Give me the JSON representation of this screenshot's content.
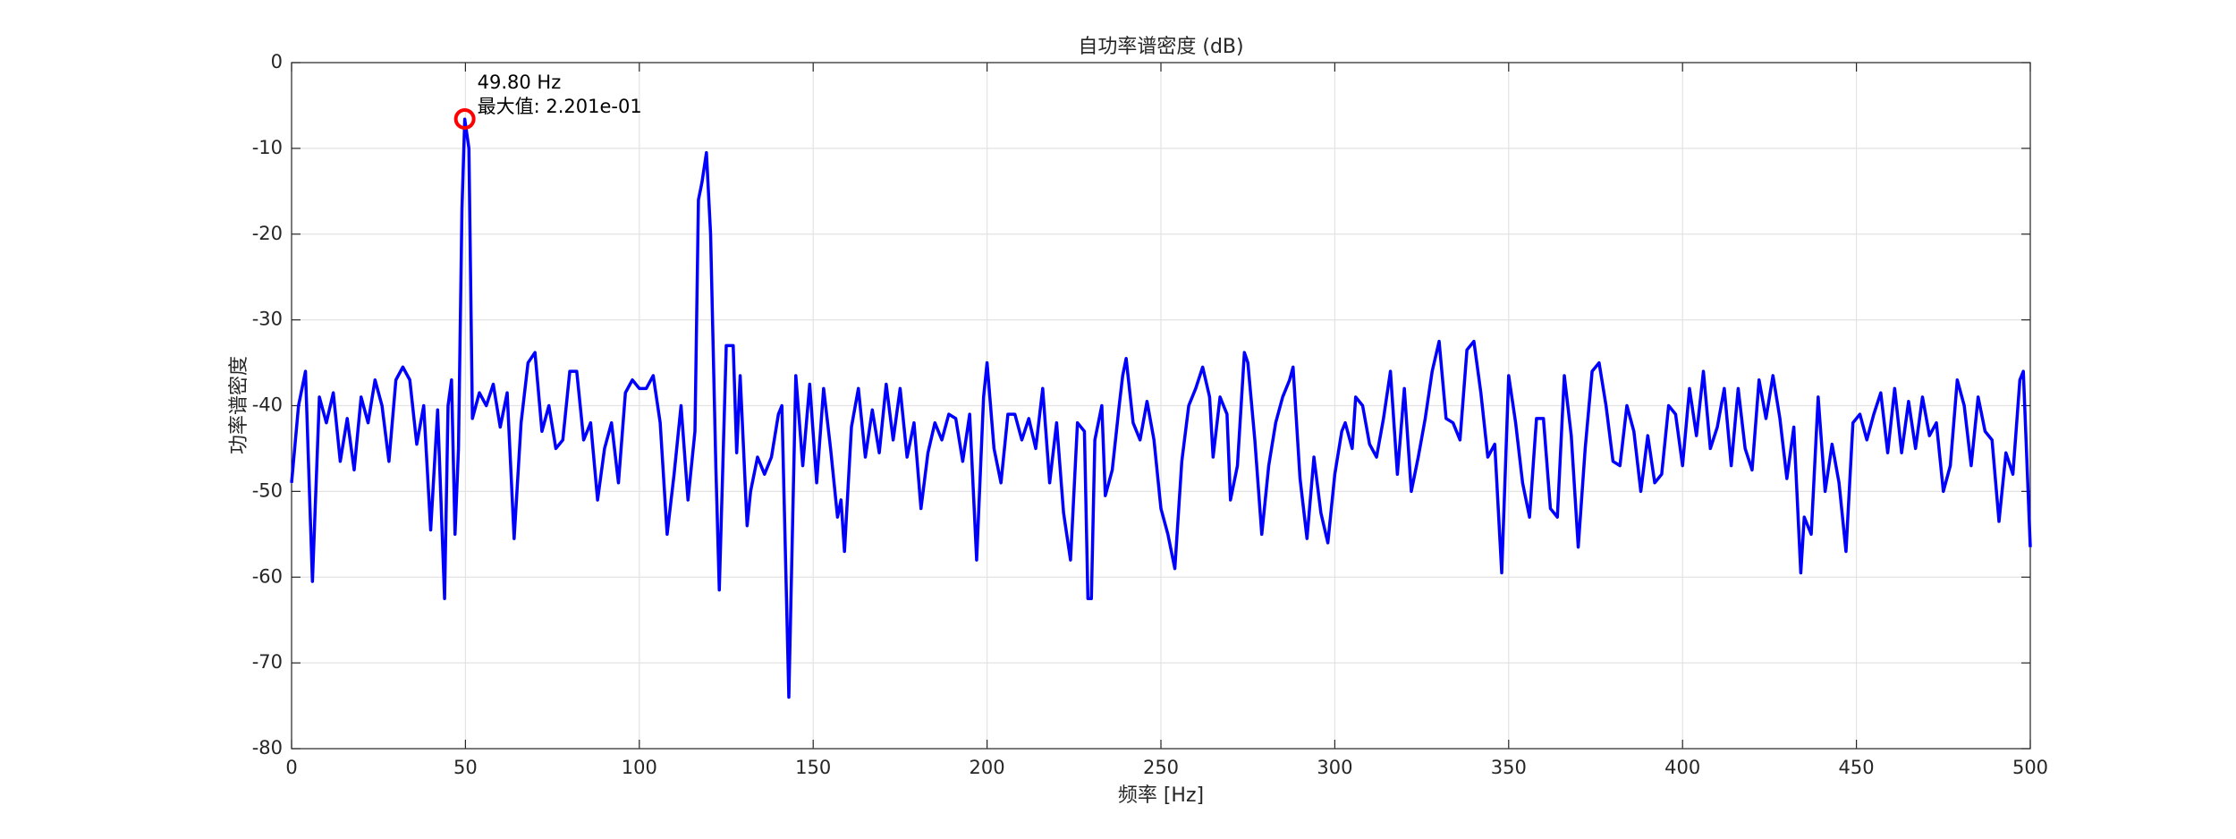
{
  "chart_data": {
    "type": "line",
    "title": "自功率谱密度 (dB)",
    "xlabel": "频率 [Hz]",
    "ylabel": "功率谱密度",
    "xlim": [
      0,
      500
    ],
    "xticks": [
      0,
      50,
      100,
      150,
      200,
      250,
      300,
      350,
      400,
      450,
      500
    ],
    "ylim": [
      -80,
      0
    ],
    "yticks": [
      -80,
      -70,
      -60,
      -50,
      -40,
      -30,
      -20,
      -10,
      0
    ],
    "grid": true,
    "color": "#0000ff",
    "x": [
      0,
      2,
      4,
      6,
      8,
      10,
      12,
      14,
      16,
      18,
      20,
      22,
      24,
      26,
      28,
      30,
      32,
      34,
      36,
      38,
      40,
      42,
      44,
      45,
      46,
      47,
      48,
      49,
      49.8,
      51,
      52,
      54,
      56,
      58,
      60,
      62,
      64,
      66,
      68,
      70,
      72,
      74,
      76,
      78,
      80,
      82,
      84,
      86,
      88,
      90,
      92,
      94,
      96,
      98,
      100,
      102,
      104,
      106,
      108,
      110,
      112,
      114,
      116,
      117,
      118,
      119.3,
      120.5,
      122,
      123,
      125,
      127,
      128,
      129,
      131,
      132,
      134,
      136,
      138,
      140,
      141,
      143,
      145,
      147,
      149,
      151,
      153,
      155,
      157,
      158,
      159,
      161,
      163,
      165,
      167,
      169,
      171,
      173,
      175,
      177,
      179,
      181,
      183,
      185,
      187,
      189,
      191,
      193,
      195,
      197,
      199,
      200,
      202,
      204,
      206,
      208,
      210,
      212,
      214,
      216,
      218,
      220,
      222,
      224,
      226,
      228,
      229,
      230,
      231,
      233,
      234,
      236,
      238,
      239,
      240,
      242,
      244,
      246,
      248,
      250,
      252,
      254,
      256,
      258,
      260,
      262,
      264,
      265,
      267,
      269,
      270,
      272,
      274,
      275,
      277,
      279,
      281,
      283,
      285,
      287,
      288,
      290,
      292,
      294,
      296,
      298,
      300,
      302,
      303,
      305,
      306,
      308,
      310,
      312,
      314,
      316,
      318,
      320,
      322,
      324,
      326,
      328,
      330,
      332,
      334,
      336,
      338,
      340,
      342,
      344,
      346,
      348,
      350,
      352,
      354,
      356,
      358,
      360,
      362,
      364,
      366,
      368,
      370,
      372,
      374,
      376,
      378,
      380,
      382,
      384,
      386,
      388,
      390,
      392,
      394,
      396,
      398,
      400,
      402,
      404,
      406,
      408,
      410,
      412,
      414,
      416,
      418,
      420,
      422,
      424,
      426,
      428,
      430,
      432,
      434,
      435,
      437,
      439,
      441,
      443,
      445,
      447,
      449,
      451,
      453,
      455,
      457,
      459,
      461,
      463,
      465,
      467,
      469,
      471,
      473,
      475,
      477,
      479,
      481,
      483,
      485,
      487,
      489,
      491,
      493,
      495,
      497,
      498,
      500
    ],
    "values": [
      -49,
      -40,
      -36,
      -60.5,
      -39,
      -42,
      -38.5,
      -46.5,
      -41.5,
      -47.5,
      -39,
      -42,
      -37,
      -40,
      -46.5,
      -37,
      -35.5,
      -37,
      -44.5,
      -40,
      -54.5,
      -40.5,
      -62.5,
      -40,
      -37,
      -55,
      -45,
      -17,
      -6.6,
      -10,
      -41.5,
      -38.5,
      -40,
      -37.5,
      -42.5,
      -38.5,
      -55.5,
      -42,
      -35,
      -33.8,
      -43,
      -40,
      -45,
      -44,
      -36,
      -36,
      -44,
      -42,
      -51,
      -45,
      -42,
      -49,
      -38.5,
      -37,
      -38,
      -38,
      -36.5,
      -42,
      -55,
      -48,
      -40,
      -51,
      -43,
      -16,
      -14,
      -10.5,
      -20,
      -47,
      -61.5,
      -33,
      -33,
      -45.5,
      -36.5,
      -54,
      -50,
      -46,
      -48,
      -46,
      -41,
      -40,
      -74,
      -36.5,
      -47,
      -37.5,
      -49,
      -38,
      -45,
      -53,
      -51,
      -57,
      -42.5,
      -38,
      -46,
      -40.5,
      -45.5,
      -37.5,
      -44,
      -38,
      -46,
      -42,
      -52,
      -45.5,
      -42,
      -44,
      -41,
      -41.5,
      -46.5,
      -41,
      -58,
      -39,
      -35,
      -45,
      -49,
      -41,
      -41,
      -44,
      -41.5,
      -45,
      -38,
      -49,
      -42,
      -52.5,
      -58,
      -42,
      -43,
      -62.5,
      -62.5,
      -44,
      -40,
      -50.5,
      -47.5,
      -40,
      -36.5,
      -34.5,
      -42,
      -44,
      -39.5,
      -44,
      -52,
      -55,
      -59,
      -46.5,
      -40,
      -38,
      -35.5,
      -39,
      -46,
      -39,
      -41,
      -51,
      -47,
      -33.8,
      -35,
      -44,
      -55,
      -47,
      -42,
      -39,
      -37,
      -35.5,
      -48.5,
      -55.5,
      -46,
      -52.5,
      -56,
      -48,
      -43,
      -42,
      -45,
      -39,
      -40,
      -44.5,
      -46,
      -41.5,
      -36,
      -48,
      -38,
      -50,
      -46,
      -41.5,
      -36,
      -32.5,
      -41.5,
      -42,
      -44,
      -33.5,
      -32.5,
      -38.5,
      -46,
      -44.5,
      -59.5,
      -36.5,
      -42,
      -49,
      -53,
      -41.5,
      -41.5,
      -52,
      -53,
      -36.5,
      -43.5,
      -56.5,
      -45,
      -36,
      -35,
      -40,
      -46.5,
      -47,
      -40,
      -43,
      -50,
      -43.5,
      -49,
      -48,
      -40,
      -41,
      -47,
      -38,
      -43.5,
      -36,
      -45,
      -42.5,
      -38,
      -47,
      -38,
      -45,
      -47.5,
      -37,
      -41.5,
      -36.5,
      -41.5,
      -48.5,
      -42.5,
      -59.5,
      -53,
      -55,
      -39,
      -50,
      -44.5,
      -49,
      -57,
      -42,
      -41,
      -44,
      -41,
      -38.5,
      -45.5,
      -38,
      -45.5,
      -39.5,
      -45,
      -39,
      -43.5,
      -42,
      -50,
      -47,
      -37,
      -40,
      -47,
      -39,
      -43,
      -44,
      -53.5,
      -45.5,
      -48,
      -37,
      -36,
      -56.5
    ],
    "marker": {
      "x": 49.8,
      "y": -6.57,
      "color": "#ff0000"
    },
    "annotation": [
      "49.80 Hz",
      "最大值: 2.201e-01"
    ]
  }
}
